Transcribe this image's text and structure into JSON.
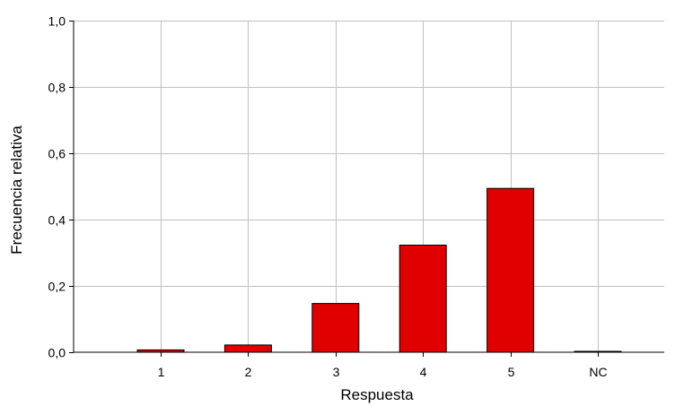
{
  "chart_data": {
    "type": "bar",
    "categories": [
      "1",
      "2",
      "3",
      "4",
      "5",
      "NC"
    ],
    "values": [
      0.007,
      0.022,
      0.147,
      0.323,
      0.494,
      0.0
    ],
    "ylim": [
      0,
      1.0
    ],
    "yticks": [
      "0,0",
      "0,2",
      "0,4",
      "0,6",
      "0,8",
      "1,0"
    ],
    "ytick_values": [
      0,
      0.2,
      0.4,
      0.6,
      0.8,
      1.0
    ],
    "xlabel": "Respuesta",
    "ylabel": "Frecuencia relativa",
    "grid": true,
    "bar_color": "#e00000"
  }
}
